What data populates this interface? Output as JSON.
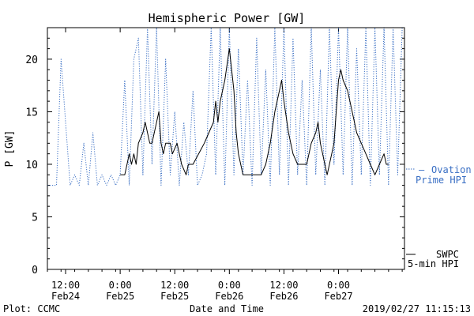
{
  "chart_data": {
    "type": "line",
    "title": "Hemispheric Power [GW]",
    "ylabel": "P [GW]",
    "xlabel": "Date and Time",
    "ylim": [
      0,
      23
    ],
    "xlim": [
      "2019-02-24 08:00",
      "2019-02-27 14:30"
    ],
    "yticks": [
      0,
      5,
      10,
      15,
      20
    ],
    "xticks": [
      {
        "t": "2019-02-24 12:00",
        "line1": "12:00",
        "line2": "Feb24"
      },
      {
        "t": "2019-02-25 00:00",
        "line1": "0:00",
        "line2": "Feb25"
      },
      {
        "t": "2019-02-25 12:00",
        "line1": "12:00",
        "line2": "Feb25"
      },
      {
        "t": "2019-02-26 00:00",
        "line1": "0:00",
        "line2": "Feb26"
      },
      {
        "t": "2019-02-26 12:00",
        "line1": "12:00",
        "line2": "Feb26"
      },
      {
        "t": "2019-02-27 00:00",
        "line1": "0:00",
        "line2": "Feb27"
      }
    ],
    "series": [
      {
        "legend_line1": "SWPC",
        "legend_line2": "5-min HPI",
        "color": "#000000",
        "style": "solid",
        "points": [
          [
            "2019-02-25 00:00",
            9
          ],
          [
            "2019-02-25 01:00",
            9
          ],
          [
            "2019-02-25 01:30",
            10
          ],
          [
            "2019-02-25 02:00",
            11
          ],
          [
            "2019-02-25 02:30",
            10
          ],
          [
            "2019-02-25 03:00",
            11
          ],
          [
            "2019-02-25 03:30",
            10
          ],
          [
            "2019-02-25 04:00",
            12
          ],
          [
            "2019-02-25 05:00",
            13
          ],
          [
            "2019-02-25 05:30",
            14
          ],
          [
            "2019-02-25 06:00",
            13
          ],
          [
            "2019-02-25 06:30",
            12
          ],
          [
            "2019-02-25 07:00",
            12
          ],
          [
            "2019-02-25 08:00",
            14
          ],
          [
            "2019-02-25 08:30",
            15
          ],
          [
            "2019-02-25 09:00",
            12
          ],
          [
            "2019-02-25 09:30",
            11
          ],
          [
            "2019-02-25 10:00",
            12
          ],
          [
            "2019-02-25 11:00",
            12
          ],
          [
            "2019-02-25 11:30",
            11
          ],
          [
            "2019-02-25 12:30",
            12
          ],
          [
            "2019-02-25 13:00",
            11
          ],
          [
            "2019-02-25 13:30",
            10
          ],
          [
            "2019-02-25 14:30",
            9
          ],
          [
            "2019-02-25 15:00",
            10
          ],
          [
            "2019-02-25 16:00",
            10
          ],
          [
            "2019-02-25 18:30",
            12
          ],
          [
            "2019-02-25 19:30",
            13
          ],
          [
            "2019-02-25 20:30",
            14
          ],
          [
            "2019-02-25 21:00",
            16
          ],
          [
            "2019-02-25 21:30",
            14
          ],
          [
            "2019-02-25 22:00",
            16
          ],
          [
            "2019-02-25 23:00",
            18
          ],
          [
            "2019-02-26 00:00",
            21
          ],
          [
            "2019-02-26 01:00",
            17
          ],
          [
            "2019-02-26 01:30",
            13
          ],
          [
            "2019-02-26 02:00",
            11
          ],
          [
            "2019-02-26 02:30",
            10
          ],
          [
            "2019-02-26 03:00",
            9
          ],
          [
            "2019-02-26 07:00",
            9
          ],
          [
            "2019-02-26 08:00",
            10
          ],
          [
            "2019-02-26 09:00",
            12
          ],
          [
            "2019-02-26 10:00",
            15
          ],
          [
            "2019-02-26 11:00",
            17
          ],
          [
            "2019-02-26 11:30",
            18
          ],
          [
            "2019-02-26 12:00",
            16
          ],
          [
            "2019-02-26 13:00",
            13
          ],
          [
            "2019-02-26 14:00",
            11
          ],
          [
            "2019-02-26 15:00",
            10
          ],
          [
            "2019-02-26 17:00",
            10
          ],
          [
            "2019-02-26 18:00",
            12
          ],
          [
            "2019-02-26 19:00",
            13
          ],
          [
            "2019-02-26 19:30",
            14
          ],
          [
            "2019-02-26 20:00",
            12
          ],
          [
            "2019-02-26 20:30",
            11
          ],
          [
            "2019-02-26 21:00",
            10
          ],
          [
            "2019-02-26 21:30",
            9
          ],
          [
            "2019-02-26 22:00",
            10
          ],
          [
            "2019-02-26 23:00",
            12
          ],
          [
            "2019-02-26 23:30",
            15
          ],
          [
            "2019-02-27 00:00",
            18
          ],
          [
            "2019-02-27 00:30",
            19
          ],
          [
            "2019-02-27 01:00",
            18
          ],
          [
            "2019-02-27 02:00",
            17
          ],
          [
            "2019-02-27 03:00",
            15
          ],
          [
            "2019-02-27 04:00",
            13
          ],
          [
            "2019-02-27 05:00",
            12
          ],
          [
            "2019-02-27 06:00",
            11
          ],
          [
            "2019-02-27 07:00",
            10
          ],
          [
            "2019-02-27 08:00",
            9
          ],
          [
            "2019-02-27 09:00",
            10
          ],
          [
            "2019-02-27 10:00",
            11
          ],
          [
            "2019-02-27 10:30",
            10
          ],
          [
            "2019-02-27 11:00",
            10
          ]
        ]
      },
      {
        "legend_line1": "Ovation",
        "legend_line2": "Prime HPI",
        "color": "#3a6fc4",
        "style": "dotted",
        "points": [
          [
            "2019-02-24 08:00",
            8
          ],
          [
            "2019-02-24 10:00",
            8
          ],
          [
            "2019-02-24 11:00",
            20
          ],
          [
            "2019-02-24 12:00",
            14
          ],
          [
            "2019-02-24 13:00",
            8
          ],
          [
            "2019-02-24 14:00",
            9
          ],
          [
            "2019-02-24 15:00",
            8
          ],
          [
            "2019-02-24 16:00",
            12
          ],
          [
            "2019-02-24 17:00",
            8
          ],
          [
            "2019-02-24 18:00",
            13
          ],
          [
            "2019-02-24 19:00",
            8
          ],
          [
            "2019-02-24 20:00",
            9
          ],
          [
            "2019-02-24 21:00",
            8
          ],
          [
            "2019-02-24 22:00",
            9
          ],
          [
            "2019-02-24 23:00",
            8
          ],
          [
            "2019-02-25 00:00",
            9
          ],
          [
            "2019-02-25 01:00",
            18
          ],
          [
            "2019-02-25 02:00",
            8
          ],
          [
            "2019-02-25 03:00",
            20
          ],
          [
            "2019-02-25 04:00",
            22
          ],
          [
            "2019-02-25 05:00",
            9
          ],
          [
            "2019-02-25 06:00",
            23
          ],
          [
            "2019-02-25 07:00",
            10
          ],
          [
            "2019-02-25 08:00",
            23
          ],
          [
            "2019-02-25 09:00",
            8
          ],
          [
            "2019-02-25 10:00",
            20
          ],
          [
            "2019-02-25 11:00",
            9
          ],
          [
            "2019-02-25 12:00",
            15
          ],
          [
            "2019-02-25 13:00",
            8
          ],
          [
            "2019-02-25 14:00",
            14
          ],
          [
            "2019-02-25 15:00",
            9
          ],
          [
            "2019-02-25 16:00",
            17
          ],
          [
            "2019-02-25 17:00",
            8
          ],
          [
            "2019-02-25 18:00",
            9
          ],
          [
            "2019-02-25 19:00",
            11
          ],
          [
            "2019-02-25 20:00",
            23
          ],
          [
            "2019-02-25 21:00",
            9
          ],
          [
            "2019-02-25 22:00",
            23
          ],
          [
            "2019-02-25 23:00",
            8
          ],
          [
            "2019-02-26 00:00",
            23
          ],
          [
            "2019-02-26 01:00",
            9
          ],
          [
            "2019-02-26 02:00",
            21
          ],
          [
            "2019-02-26 03:00",
            9
          ],
          [
            "2019-02-26 04:00",
            18
          ],
          [
            "2019-02-26 05:00",
            8
          ],
          [
            "2019-02-26 06:00",
            22
          ],
          [
            "2019-02-26 07:00",
            9
          ],
          [
            "2019-02-26 08:00",
            19
          ],
          [
            "2019-02-26 09:00",
            8
          ],
          [
            "2019-02-26 10:00",
            23
          ],
          [
            "2019-02-26 11:00",
            9
          ],
          [
            "2019-02-26 12:00",
            23
          ],
          [
            "2019-02-26 13:00",
            8
          ],
          [
            "2019-02-26 14:00",
            22
          ],
          [
            "2019-02-26 15:00",
            9
          ],
          [
            "2019-02-26 16:00",
            18
          ],
          [
            "2019-02-26 17:00",
            8
          ],
          [
            "2019-02-26 18:00",
            23
          ],
          [
            "2019-02-26 19:00",
            9
          ],
          [
            "2019-02-26 20:00",
            19
          ],
          [
            "2019-02-26 21:00",
            8
          ],
          [
            "2019-02-26 22:00",
            23
          ],
          [
            "2019-02-26 23:00",
            10
          ],
          [
            "2019-02-27 00:00",
            23
          ],
          [
            "2019-02-27 01:00",
            9
          ],
          [
            "2019-02-27 02:00",
            23
          ],
          [
            "2019-02-27 03:00",
            8
          ],
          [
            "2019-02-27 04:00",
            21
          ],
          [
            "2019-02-27 05:00",
            9
          ],
          [
            "2019-02-27 06:00",
            23
          ],
          [
            "2019-02-27 07:00",
            8
          ],
          [
            "2019-02-27 08:00",
            23
          ],
          [
            "2019-02-27 09:00",
            9
          ],
          [
            "2019-02-27 10:00",
            23
          ],
          [
            "2019-02-27 11:00",
            8
          ],
          [
            "2019-02-27 12:00",
            23
          ],
          [
            "2019-02-27 13:00",
            9
          ],
          [
            "2019-02-27 14:00",
            23
          ]
        ]
      }
    ]
  },
  "footer": {
    "left": "Plot: CCMC",
    "center": "Date and Time",
    "right": "2019/02/27 11:15:13"
  }
}
